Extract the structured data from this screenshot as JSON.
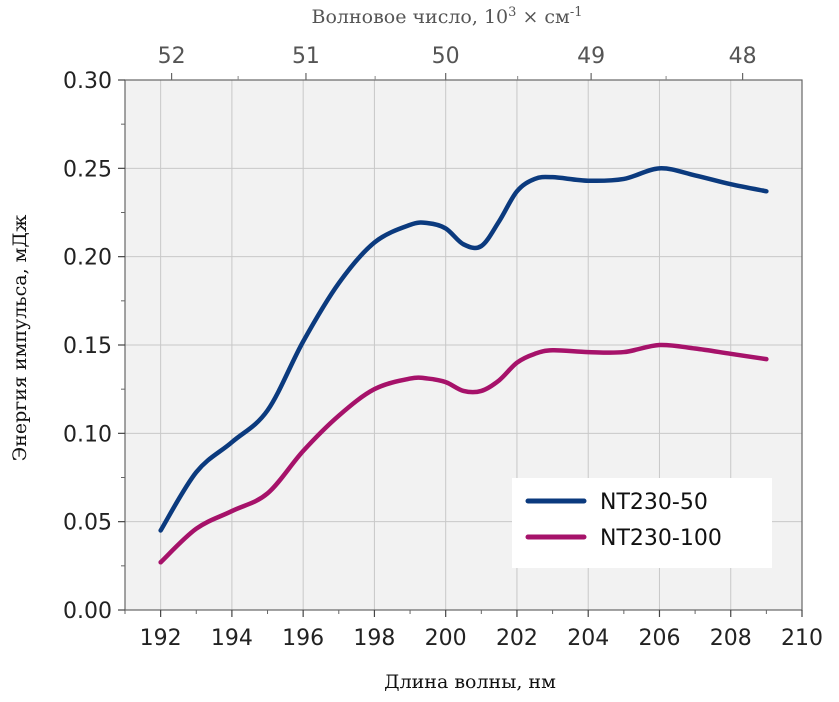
{
  "chart_data": {
    "type": "line",
    "xlabel": "Длина волны, нм",
    "ylabel": "Энергия импульса, мДж",
    "top_axis": {
      "label_prefix": "Волновое число, 10",
      "label_exp1": "3",
      "label_mid": " × см",
      "label_exp2": "-1",
      "ticks": [
        52,
        51,
        50,
        49,
        48
      ]
    },
    "xlim": [
      191,
      210
    ],
    "ylim": [
      0,
      0.3
    ],
    "xticks": [
      192,
      194,
      196,
      198,
      200,
      202,
      204,
      206,
      208,
      210
    ],
    "yticks": [
      "0.00",
      "0.05",
      "0.10",
      "0.15",
      "0.20",
      "0.25",
      "0.30"
    ],
    "grid": true,
    "legend_position": "bottom-right",
    "series": [
      {
        "name": "NT230-50",
        "color": "#0b3a7e",
        "x": [
          192,
          193,
          194,
          195,
          196,
          197,
          198,
          199,
          199.5,
          200,
          200.5,
          201,
          201.5,
          202,
          202.5,
          203,
          204,
          205,
          206,
          207,
          208,
          209
        ],
        "y": [
          0.045,
          0.078,
          0.095,
          0.113,
          0.152,
          0.185,
          0.208,
          0.218,
          0.219,
          0.216,
          0.207,
          0.206,
          0.22,
          0.237,
          0.244,
          0.245,
          0.243,
          0.244,
          0.25,
          0.246,
          0.241,
          0.237
        ]
      },
      {
        "name": "NT230-100",
        "color": "#a6126a",
        "x": [
          192,
          193,
          194,
          195,
          196,
          197,
          198,
          199,
          199.5,
          200,
          200.5,
          201,
          201.5,
          202,
          202.5,
          203,
          204,
          205,
          206,
          207,
          208,
          209
        ],
        "y": [
          0.027,
          0.046,
          0.056,
          0.066,
          0.09,
          0.11,
          0.125,
          0.131,
          0.131,
          0.129,
          0.124,
          0.124,
          0.13,
          0.14,
          0.145,
          0.147,
          0.146,
          0.146,
          0.15,
          0.148,
          0.145,
          0.142
        ]
      }
    ]
  }
}
